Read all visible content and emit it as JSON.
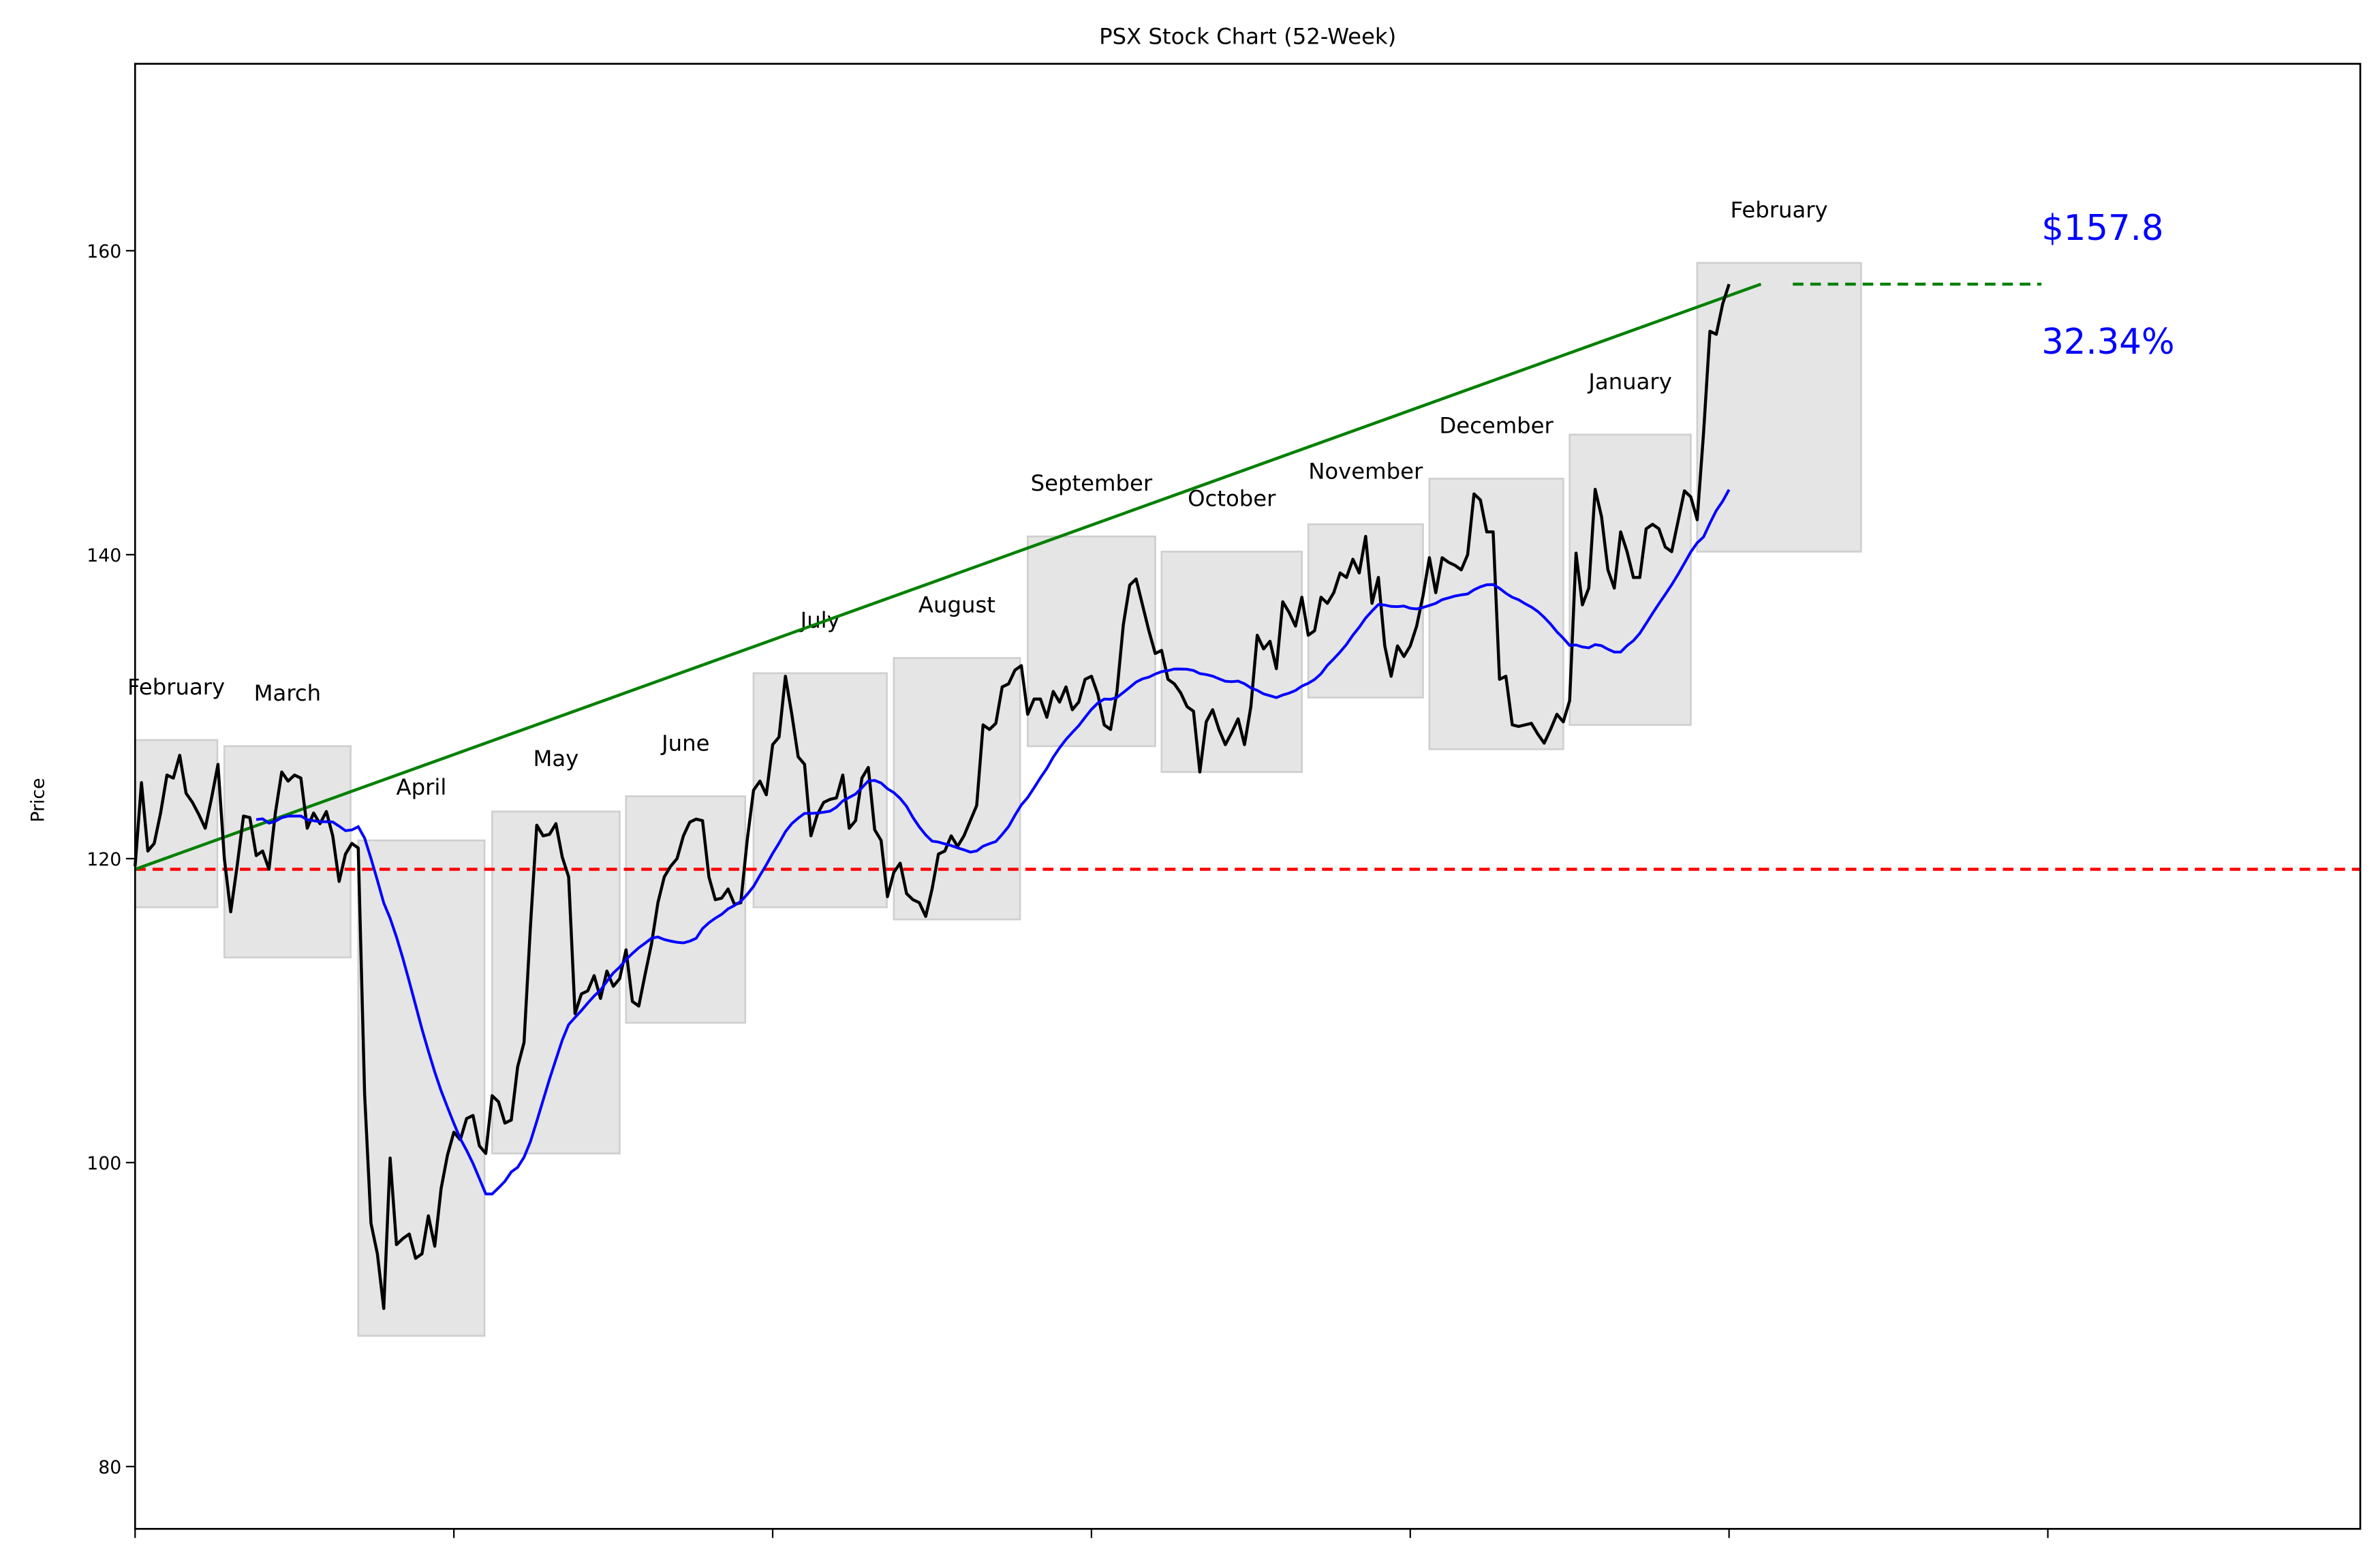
{
  "chart_data": {
    "type": "line",
    "title": "PSX Stock Chart (52-Week)",
    "xlabel": "",
    "ylabel": "Price",
    "xlim": [
      0,
      349
    ],
    "ylim": [
      75.9,
      172.3
    ],
    "x_ticks": [
      0,
      50,
      100,
      150,
      200,
      250,
      300
    ],
    "x_tick_labels_shown": false,
    "y_ticks": [
      80,
      100,
      120,
      140,
      160
    ],
    "y_tick_labels": [
      "80",
      "100",
      "120",
      "140",
      "160"
    ],
    "grid": false,
    "colors": {
      "price": "#000000",
      "moving_average": "#0000ff",
      "trend": "#008000",
      "baseline": "#ff0000",
      "annotation": "#0000ff",
      "month_box": "#e5e5e5"
    },
    "moving_average_window": 20,
    "price": [
      119.5,
      125,
      120.5,
      121,
      123,
      125.5,
      125.3,
      126.8,
      124.3,
      123.7,
      122.9,
      122,
      124,
      126.2,
      120,
      116.5,
      119.5,
      122.8,
      122.7,
      120.2,
      120.5,
      119.3,
      123,
      125.7,
      125.1,
      125.5,
      125.3,
      122,
      123,
      122.3,
      123.1,
      121.5,
      118.5,
      120.3,
      121,
      120.7,
      104.5,
      96,
      94,
      90.4,
      100.3,
      94.6,
      95,
      95.3,
      93.7,
      94,
      96.5,
      94.5,
      98.3,
      100.5,
      102,
      101.5,
      102.9,
      103.1,
      101.1,
      100.6,
      104.4,
      104,
      102.6,
      102.8,
      106.3,
      107.9,
      115.5,
      122.2,
      121.5,
      121.6,
      122.3,
      120.1,
      118.8,
      109.8,
      111.1,
      111.3,
      112.3,
      110.8,
      112.6,
      111.6,
      112.1,
      114,
      110.6,
      110.3,
      112.4,
      114.4,
      117.1,
      118.8,
      119.5,
      120,
      121.5,
      122.4,
      122.6,
      122.5,
      118.8,
      117.3,
      117.4,
      118,
      117,
      117.1,
      121.2,
      124.5,
      125.1,
      124.2,
      127.5,
      128,
      132,
      129.5,
      126.7,
      126.2,
      121.5,
      122.9,
      123.7,
      123.9,
      124,
      125.5,
      122,
      122.5,
      125.3,
      126,
      121.9,
      121.2,
      117.5,
      119.1,
      119.7,
      117.7,
      117.3,
      117.1,
      116.2,
      118,
      120.3,
      120.5,
      121.5,
      120.8,
      121.5,
      122.5,
      123.5,
      128.8,
      128.5,
      128.9,
      131.3,
      131.5,
      132.4,
      132.7,
      129.5,
      130.5,
      130.5,
      129.3,
      131,
      130.3,
      131.3,
      129.8,
      130.3,
      131.8,
      132,
      130.8,
      128.8,
      128.5,
      131,
      135.4,
      138,
      138.4,
      136.7,
      135,
      133.5,
      133.7,
      131.8,
      131.5,
      130.9,
      130,
      129.7,
      125.7,
      129,
      129.8,
      128.5,
      127.5,
      128.3,
      129.2,
      127.5,
      130,
      134.7,
      133.8,
      134.3,
      132.5,
      136.9,
      136.2,
      135.3,
      137.2,
      134.7,
      135,
      137.2,
      136.8,
      137.5,
      138.8,
      138.5,
      139.7,
      138.8,
      141.2,
      136.8,
      138.5,
      134,
      132,
      134,
      133.3,
      134,
      135.3,
      137.3,
      139.8,
      137.5,
      139.8,
      139.5,
      139.3,
      139,
      140,
      144,
      143.6,
      141.5,
      141.5,
      131.8,
      132,
      128.8,
      128.7,
      128.8,
      128.9,
      128.2,
      127.6,
      128.5,
      129.5,
      129,
      130.4,
      140.1,
      136.7,
      137.8,
      144.3,
      142.5,
      139,
      137.8,
      141.5,
      140.2,
      138.5,
      138.5,
      141.7,
      142,
      141.7,
      140.5,
      140.2,
      142.2,
      144.2,
      143.8,
      142.3,
      148,
      154.7,
      154.5,
      156.5,
      157.8
    ],
    "months": [
      {
        "label": "February",
        "start": 0,
        "end": 12.9,
        "low": 116.8,
        "high": 127.8
      },
      {
        "label": "March",
        "start": 14,
        "end": 33.8,
        "low": 113.5,
        "high": 127.4
      },
      {
        "label": "April",
        "start": 35,
        "end": 54.8,
        "low": 88.6,
        "high": 121.2
      },
      {
        "label": "May",
        "start": 56,
        "end": 76,
        "low": 100.6,
        "high": 123.1
      },
      {
        "label": "June",
        "start": 77,
        "end": 95.7,
        "low": 109.2,
        "high": 124.1
      },
      {
        "label": "July",
        "start": 97,
        "end": 117.9,
        "low": 116.8,
        "high": 132.2
      },
      {
        "label": "August",
        "start": 119,
        "end": 138.8,
        "low": 116.0,
        "high": 133.2
      },
      {
        "label": "September",
        "start": 140,
        "end": 160,
        "low": 127.4,
        "high": 141.2
      },
      {
        "label": "October",
        "start": 161,
        "end": 183,
        "low": 125.7,
        "high": 140.2
      },
      {
        "label": "November",
        "start": 184,
        "end": 202,
        "low": 130.6,
        "high": 142.0
      },
      {
        "label": "December",
        "start": 203,
        "end": 224,
        "low": 127.2,
        "high": 145.0
      },
      {
        "label": "January",
        "start": 225,
        "end": 244,
        "low": 128.8,
        "high": 147.9
      },
      {
        "label": "February",
        "start": 245,
        "end": 270.7,
        "low": 140.2,
        "high": 159.2
      }
    ],
    "baseline": {
      "value": 119.3
    },
    "trend_line": {
      "x": [
        0,
        255
      ],
      "y": [
        119.3,
        157.8
      ]
    },
    "target_line": {
      "x": [
        260,
        299
      ],
      "y": 157.8
    },
    "annotations": {
      "price": "$157.8",
      "change": "32.34%"
    }
  }
}
